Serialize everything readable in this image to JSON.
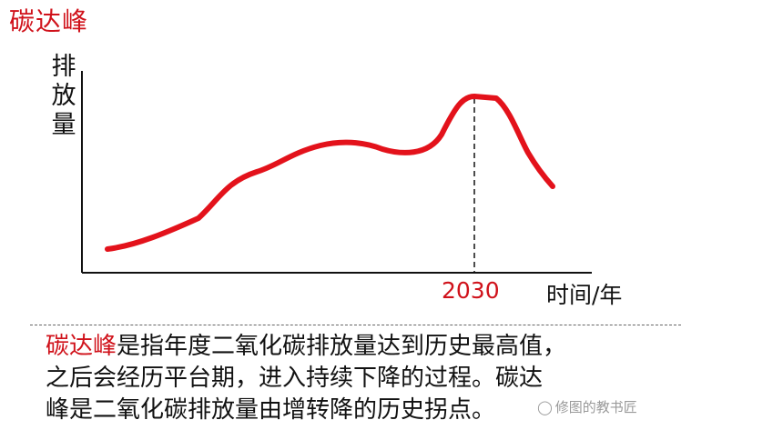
{
  "title": "碳达峰",
  "chart": {
    "y_axis_label_chars": [
      "排",
      "放",
      "量"
    ],
    "x_axis_label": "时间/年",
    "marked_year": "2030",
    "curve_color": "#e3121b",
    "accent_color": "#d0121b"
  },
  "description": {
    "highlight": "碳达峰",
    "line1_rest": "是指年度二氧化碳排放量达到历史最高值，",
    "line2": "之后会经历平台期，进入持续下降的过程。碳达",
    "line3": "峰是二氧化碳排放量由增转降的历史拐点。"
  },
  "watermark": {
    "icon": "wechat-icon",
    "text": "修图的教书匠"
  }
}
